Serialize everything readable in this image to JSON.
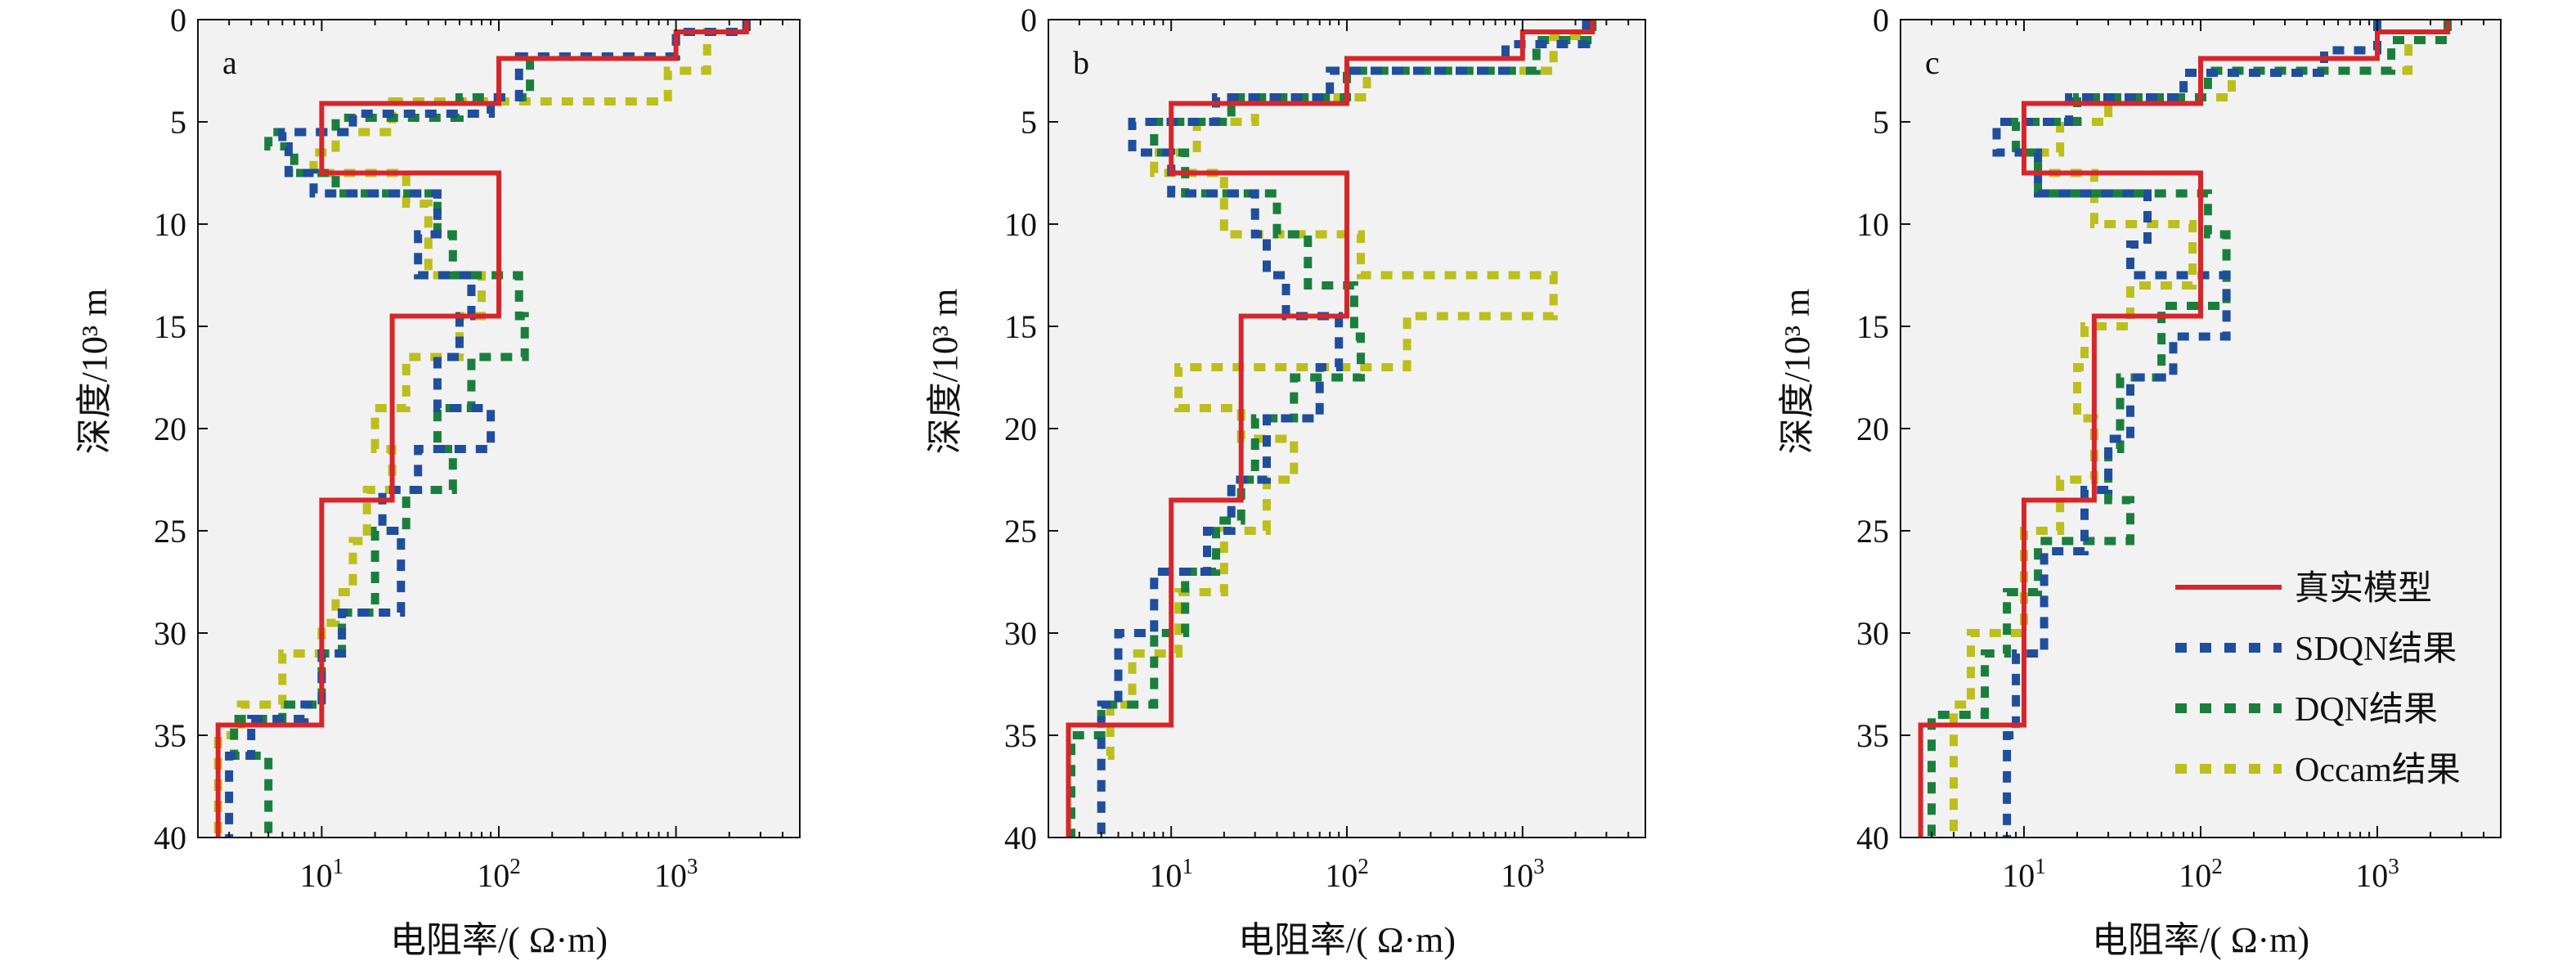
{
  "colors": {
    "background": "#f2f2f2",
    "true_model": "#d7262a",
    "sdqn": "#1f4e9c",
    "dqn": "#1a7f3c",
    "occam": "#bcbf1c",
    "axis": "#111111"
  },
  "chart_data": [
    {
      "panel": "a",
      "type": "line",
      "x_scale": "log",
      "xlabel": "电阻率/( Ω·m)",
      "ylabel": "深度/10³ m",
      "xlim": [
        2,
        5000
      ],
      "ylim": [
        40,
        0
      ],
      "x_ticks": [
        {
          "value": 10,
          "base": "10",
          "exp": "1"
        },
        {
          "value": 100,
          "base": "10",
          "exp": "2"
        },
        {
          "value": 1000,
          "base": "10",
          "exp": "3"
        }
      ],
      "y_ticks": [
        {
          "value": 0,
          "label": "0"
        },
        {
          "value": 5,
          "label": "5"
        },
        {
          "value": 10,
          "label": "10"
        },
        {
          "value": 15,
          "label": "15"
        },
        {
          "value": 20,
          "label": "20"
        },
        {
          "value": 25,
          "label": "25"
        },
        {
          "value": 30,
          "label": "30"
        },
        {
          "value": 35,
          "label": "35"
        },
        {
          "value": 40,
          "label": "40"
        }
      ],
      "series": [
        {
          "name": "真实模型",
          "key": "true",
          "style": "solid",
          "resistivity": [
            2500,
            1000,
            100,
            10,
            100,
            25,
            10,
            2.6
          ],
          "depth_top": [
            0,
            0.6,
            1.9,
            4.1,
            7.5,
            14.5,
            23.5,
            34.5,
            40
          ]
        },
        {
          "name": "SDQN结果",
          "key": "sdqn",
          "style": "dashed",
          "resistivity": [
            2500,
            1000,
            130,
            90,
            15,
            6,
            6.5,
            9,
            45,
            35,
            70,
            60,
            45,
            90,
            35,
            22,
            28,
            13,
            10,
            8,
            4,
            3,
            3
          ],
          "depth_top": [
            0,
            0.6,
            1.8,
            3.8,
            4.6,
            5.5,
            6.2,
            7.5,
            8.5,
            10.5,
            12.5,
            14.5,
            16.5,
            19,
            21,
            23,
            25,
            29,
            31,
            33.5,
            34.2,
            36,
            38,
            40
          ]
        },
        {
          "name": "DQN结果",
          "key": "dqn",
          "style": "dashed",
          "resistivity": [
            2500,
            1000,
            150,
            60,
            12,
            5,
            7,
            12,
            45,
            55,
            130,
            140,
            70,
            45,
            55,
            30,
            20,
            13,
            10,
            6,
            3.2,
            5,
            5
          ],
          "depth_top": [
            0,
            0.6,
            1.8,
            3.8,
            4.8,
            5.5,
            6.2,
            7.5,
            8.5,
            10.5,
            12.5,
            14.5,
            16.5,
            19,
            21,
            23,
            25,
            29,
            31,
            33.5,
            34.2,
            36,
            38,
            40
          ]
        },
        {
          "name": "Occam结果",
          "key": "occam",
          "style": "dashed",
          "resistivity": [
            2500,
            1500,
            900,
            25,
            12,
            9,
            30,
            40,
            80,
            60,
            30,
            20,
            25,
            18,
            15,
            12,
            10,
            6,
            3.5,
            2.6,
            2.6
          ],
          "depth_top": [
            0,
            0.6,
            2.5,
            4,
            5.5,
            6.5,
            7.5,
            9,
            12.5,
            14.5,
            16.5,
            19,
            21,
            23,
            25.5,
            28,
            29.5,
            31,
            33.5,
            35,
            38,
            40
          ]
        }
      ]
    },
    {
      "panel": "b",
      "type": "line",
      "x_scale": "log",
      "xlabel": "电阻率/( Ω·m)",
      "ylabel": "深度/10³ m",
      "xlim": [
        2,
        5000
      ],
      "ylim": [
        40,
        0
      ],
      "x_ticks": [
        {
          "value": 10,
          "base": "10",
          "exp": "1"
        },
        {
          "value": 100,
          "base": "10",
          "exp": "2"
        },
        {
          "value": 1000,
          "base": "10",
          "exp": "3"
        }
      ],
      "y_ticks": [
        {
          "value": 0,
          "label": "0"
        },
        {
          "value": 5,
          "label": "5"
        },
        {
          "value": 10,
          "label": "10"
        },
        {
          "value": 15,
          "label": "15"
        },
        {
          "value": 20,
          "label": "20"
        },
        {
          "value": 25,
          "label": "25"
        },
        {
          "value": 30,
          "label": "30"
        },
        {
          "value": 35,
          "label": "35"
        },
        {
          "value": 40,
          "label": "40"
        }
      ],
      "series": [
        {
          "name": "真实模型",
          "key": "true",
          "style": "solid",
          "resistivity": [
            2500,
            1000,
            100,
            10,
            100,
            25,
            10,
            2.6
          ],
          "depth_top": [
            0,
            0.6,
            1.9,
            4.1,
            7.5,
            14.5,
            23.5,
            34.5,
            40
          ]
        },
        {
          "name": "SDQN结果",
          "key": "sdqn",
          "style": "dashed",
          "resistivity": [
            2300,
            800,
            80,
            18,
            6,
            10,
            30,
            35,
            45,
            90,
            70,
            35,
            22,
            16,
            8,
            5,
            4,
            4
          ],
          "depth_top": [
            0,
            1.2,
            2.5,
            3.8,
            5,
            6.5,
            8.5,
            10.5,
            12.5,
            14.5,
            17,
            19.5,
            22.5,
            25,
            27,
            30,
            33.5,
            35,
            40
          ]
        },
        {
          "name": "DQN结果",
          "key": "dqn",
          "style": "dashed",
          "resistivity": [
            2500,
            1200,
            100,
            22,
            8,
            12,
            40,
            60,
            110,
            120,
            50,
            30,
            25,
            18,
            12,
            8,
            4,
            2.7,
            2.7
          ],
          "depth_top": [
            0,
            1,
            2.5,
            3.8,
            5,
            6.5,
            8.5,
            10.5,
            13,
            15.5,
            17.5,
            19.5,
            22.5,
            24.5,
            27,
            30,
            33.5,
            35,
            38,
            40
          ]
        },
        {
          "name": "Occam结果",
          "key": "occam",
          "style": "dashed",
          "resistivity": [
            2300,
            1500,
            130,
            30,
            14,
            8,
            20,
            120,
            1500,
            220,
            11,
            25,
            50,
            35,
            20,
            11,
            6,
            4.5,
            4,
            4
          ],
          "depth_top": [
            0,
            0.8,
            2.5,
            3.8,
            5,
            6.5,
            7.5,
            10.5,
            12.5,
            14.5,
            17,
            19,
            20.5,
            22.5,
            25,
            28,
            31,
            33.5,
            36,
            38,
            40
          ]
        }
      ]
    },
    {
      "panel": "c",
      "type": "line",
      "x_scale": "log",
      "xlabel": "电阻率/( Ω·m)",
      "ylabel": "深度/10³ m",
      "xlim": [
        2,
        5000
      ],
      "ylim": [
        40,
        0
      ],
      "x_ticks": [
        {
          "value": 10,
          "base": "10",
          "exp": "1"
        },
        {
          "value": 100,
          "base": "10",
          "exp": "2"
        },
        {
          "value": 1000,
          "base": "10",
          "exp": "3"
        }
      ],
      "y_ticks": [
        {
          "value": 0,
          "label": "0"
        },
        {
          "value": 5,
          "label": "5"
        },
        {
          "value": 10,
          "label": "10"
        },
        {
          "value": 15,
          "label": "15"
        },
        {
          "value": 20,
          "label": "20"
        },
        {
          "value": 25,
          "label": "25"
        },
        {
          "value": 30,
          "label": "30"
        },
        {
          "value": 35,
          "label": "35"
        },
        {
          "value": 40,
          "label": "40"
        }
      ],
      "legend": {
        "position": "right",
        "entries": [
          {
            "key": "true",
            "label": "真实模型"
          },
          {
            "key": "sdqn",
            "label": "SDQN结果"
          },
          {
            "key": "dqn",
            "label": "DQN结果"
          },
          {
            "key": "occam",
            "label": "Occam结果"
          }
        ]
      },
      "series": [
        {
          "name": "真实模型",
          "key": "true",
          "style": "solid",
          "resistivity": [
            2500,
            1000,
            100,
            10,
            100,
            25,
            10,
            2.6
          ],
          "depth_top": [
            0,
            0.6,
            1.9,
            4.1,
            7.5,
            14.5,
            23.5,
            34.5,
            40
          ]
        },
        {
          "name": "SDQN结果",
          "key": "sdqn",
          "style": "dashed",
          "resistivity": [
            1000,
            500,
            80,
            18,
            7,
            12,
            50,
            40,
            140,
            70,
            40,
            30,
            22,
            13,
            9,
            8
          ],
          "depth_top": [
            0,
            1.5,
            2.6,
            3.8,
            5,
            6.5,
            8.5,
            11,
            12.5,
            15.5,
            17.5,
            20.5,
            23,
            26,
            31,
            35,
            40
          ]
        },
        {
          "name": "DQN结果",
          "key": "dqn",
          "style": "dashed",
          "resistivity": [
            2500,
            1200,
            110,
            20,
            9,
            12,
            110,
            140,
            60,
            35,
            30,
            40,
            12,
            8,
            6,
            3,
            3
          ],
          "depth_top": [
            0,
            1,
            2.5,
            3.8,
            5,
            6.5,
            8.5,
            10.5,
            14,
            17.5,
            21,
            23.5,
            25.5,
            28,
            31,
            34,
            38,
            40
          ]
        },
        {
          "name": "Occam结果",
          "key": "occam",
          "style": "dashed",
          "resistivity": [
            2500,
            1500,
            150,
            30,
            16,
            12,
            25,
            90,
            40,
            22,
            20,
            25,
            16,
            10,
            5,
            4,
            4
          ],
          "depth_top": [
            0,
            1,
            2.5,
            3.8,
            5,
            6.5,
            7.5,
            10,
            13,
            15,
            17,
            19.5,
            22.5,
            25,
            30,
            33.5,
            36,
            40
          ]
        }
      ]
    }
  ]
}
